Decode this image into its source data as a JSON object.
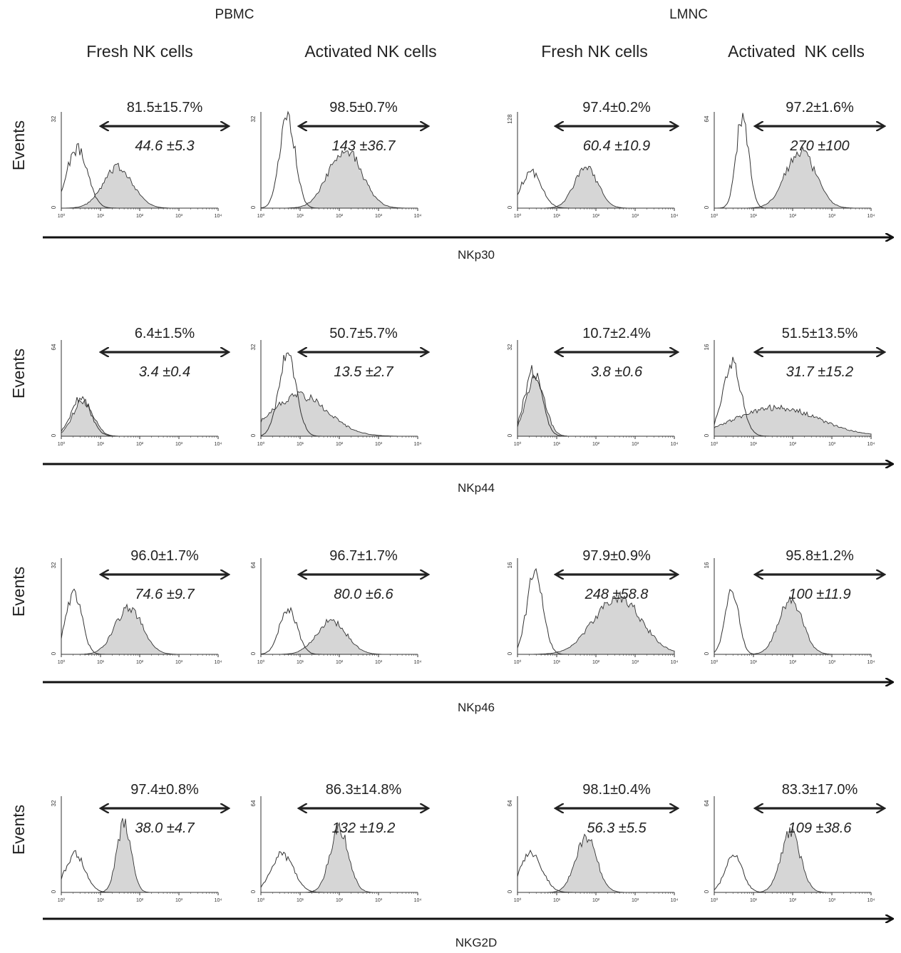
{
  "figure": {
    "group_labels": [
      "PBMC",
      "LMNC"
    ],
    "column_labels": [
      "Fresh NK cells",
      "Activated NK cells",
      "Fresh NK cells",
      "Activated  NK cells"
    ],
    "y_axis_label": "Events",
    "x_tick_labels": [
      "10⁰",
      "10¹",
      "10²",
      "10³",
      "10⁴"
    ],
    "colors": {
      "line": "#333333",
      "fill": "#d6d6d6",
      "axis": "#111111"
    }
  },
  "chart_data": [
    {
      "type": "histogram",
      "marker": "NKp30",
      "group": "PBMC",
      "cells": "Fresh NK cells",
      "percent_label": "81.5±15.7%",
      "mfi_label": "44.6 ±5.3",
      "ymax": 32,
      "xscale": "log",
      "xlim": [
        1,
        10000
      ],
      "control": {
        "peak_log10": 0.4,
        "width": 0.26,
        "height": 0.62
      },
      "stained": {
        "peak_log10": 1.45,
        "width": 0.38,
        "height": 0.42
      }
    },
    {
      "type": "histogram",
      "marker": "NKp30",
      "group": "PBMC",
      "cells": "Activated NK cells",
      "percent_label": "98.5±0.7%",
      "mfi_label": "143 ±36.7",
      "ymax": 32,
      "xscale": "log",
      "xlim": [
        1,
        10000
      ],
      "control": {
        "peak_log10": 0.68,
        "width": 0.2,
        "height": 0.93
      },
      "stained": {
        "peak_log10": 2.15,
        "width": 0.42,
        "height": 0.62
      }
    },
    {
      "type": "histogram",
      "marker": "NKp30",
      "group": "LMNC",
      "cells": "Fresh NK cells",
      "percent_label": "97.4±0.2%",
      "mfi_label": "60.4 ±10.9",
      "ymax": 128,
      "xscale": "log",
      "xlim": [
        1,
        10000
      ],
      "control": {
        "peak_log10": 0.35,
        "width": 0.26,
        "height": 0.38
      },
      "stained": {
        "peak_log10": 1.75,
        "width": 0.3,
        "height": 0.42
      }
    },
    {
      "type": "histogram",
      "marker": "NKp30",
      "group": "LMNC",
      "cells": "Activated  NK cells",
      "percent_label": "97.2±1.6%",
      "mfi_label": "270 ±100",
      "ymax": 64,
      "xscale": "log",
      "xlim": [
        1,
        10000
      ],
      "control": {
        "peak_log10": 0.72,
        "width": 0.16,
        "height": 0.96
      },
      "stained": {
        "peak_log10": 2.2,
        "width": 0.38,
        "height": 0.6
      }
    },
    {
      "type": "histogram",
      "marker": "NKp44",
      "group": "PBMC",
      "cells": "Fresh NK cells",
      "percent_label": "6.4±1.5%",
      "mfi_label": "3.4 ±0.4",
      "ymax": 64,
      "xscale": "log",
      "xlim": [
        1,
        10000
      ],
      "control": {
        "peak_log10": 0.5,
        "width": 0.25,
        "height": 0.4
      },
      "stained": {
        "peak_log10": 0.55,
        "width": 0.26,
        "height": 0.37
      }
    },
    {
      "type": "histogram",
      "marker": "NKp44",
      "group": "PBMC",
      "cells": "Activated NK cells",
      "percent_label": "50.7±5.7%",
      "mfi_label": "13.5 ±2.7",
      "ymax": 32,
      "xscale": "log",
      "xlim": [
        1,
        10000
      ],
      "control": {
        "peak_log10": 0.68,
        "width": 0.22,
        "height": 0.88
      },
      "stained": {
        "peak_log10": 1.0,
        "width": 0.72,
        "height": 0.42
      }
    },
    {
      "type": "histogram",
      "marker": "NKp44",
      "group": "LMNC",
      "cells": "Fresh NK cells",
      "percent_label": "10.7±2.4%",
      "mfi_label": "3.8 ±0.6",
      "ymax": 32,
      "xscale": "log",
      "xlim": [
        1,
        10000
      ],
      "control": {
        "peak_log10": 0.4,
        "width": 0.22,
        "height": 0.68
      },
      "stained": {
        "peak_log10": 0.45,
        "width": 0.24,
        "height": 0.62
      }
    },
    {
      "type": "histogram",
      "marker": "NKp44",
      "group": "LMNC",
      "cells": "Activated  NK cells",
      "percent_label": "51.5±13.5%",
      "mfi_label": "31.7 ±15.2",
      "ymax": 16,
      "xscale": "log",
      "xlim": [
        1,
        10000
      ],
      "control": {
        "peak_log10": 0.45,
        "width": 0.24,
        "height": 0.75
      },
      "stained": {
        "peak_log10": 1.6,
        "width": 1.05,
        "height": 0.3
      }
    },
    {
      "type": "histogram",
      "marker": "NKp46",
      "group": "PBMC",
      "cells": "Fresh NK cells",
      "percent_label": "96.0±1.7%",
      "mfi_label": "74.6 ±9.7",
      "ymax": 32,
      "xscale": "log",
      "xlim": [
        1,
        10000
      ],
      "control": {
        "peak_log10": 0.32,
        "width": 0.2,
        "height": 0.65
      },
      "stained": {
        "peak_log10": 1.72,
        "width": 0.35,
        "height": 0.48
      }
    },
    {
      "type": "histogram",
      "marker": "NKp46",
      "group": "PBMC",
      "cells": "Activated NK cells",
      "percent_label": "96.7±1.7%",
      "mfi_label": "80.0 ±6.6",
      "ymax": 64,
      "xscale": "log",
      "xlim": [
        1,
        10000
      ],
      "control": {
        "peak_log10": 0.7,
        "width": 0.22,
        "height": 0.48
      },
      "stained": {
        "peak_log10": 1.8,
        "width": 0.38,
        "height": 0.35
      }
    },
    {
      "type": "histogram",
      "marker": "NKp46",
      "group": "LMNC",
      "cells": "Fresh NK cells",
      "percent_label": "97.9±0.9%",
      "mfi_label": "248 ±58.8",
      "ymax": 16,
      "xscale": "log",
      "xlim": [
        1,
        10000
      ],
      "control": {
        "peak_log10": 0.45,
        "width": 0.2,
        "height": 0.9
      },
      "stained": {
        "peak_log10": 2.55,
        "width": 0.6,
        "height": 0.6
      }
    },
    {
      "type": "histogram",
      "marker": "NKp46",
      "group": "LMNC",
      "cells": "Activated  NK cells",
      "percent_label": "95.8±1.2%",
      "mfi_label": "100 ±11.9",
      "ymax": 16,
      "xscale": "log",
      "xlim": [
        1,
        10000
      ],
      "control": {
        "peak_log10": 0.45,
        "width": 0.17,
        "height": 0.68
      },
      "stained": {
        "peak_log10": 1.95,
        "width": 0.3,
        "height": 0.58
      }
    },
    {
      "type": "histogram",
      "marker": "NKG2D",
      "group": "PBMC",
      "cells": "Fresh NK cells",
      "percent_label": "97.4±0.8%",
      "mfi_label": "38.0 ±4.7",
      "ymax": 32,
      "xscale": "log",
      "xlim": [
        1,
        10000
      ],
      "control": {
        "peak_log10": 0.35,
        "width": 0.25,
        "height": 0.4
      },
      "stained": {
        "peak_log10": 1.6,
        "width": 0.18,
        "height": 0.72
      }
    },
    {
      "type": "histogram",
      "marker": "NKG2D",
      "group": "PBMC",
      "cells": "Activated NK cells",
      "percent_label": "86.3±14.8%",
      "mfi_label": "132 ±19.2",
      "ymax": 64,
      "xscale": "log",
      "xlim": [
        1,
        10000
      ],
      "control": {
        "peak_log10": 0.55,
        "width": 0.28,
        "height": 0.4
      },
      "stained": {
        "peak_log10": 2.0,
        "width": 0.24,
        "height": 0.65
      }
    },
    {
      "type": "histogram",
      "marker": "NKG2D",
      "group": "LMNC",
      "cells": "Fresh NK cells",
      "percent_label": "98.1±0.4%",
      "mfi_label": "56.3 ±5.5",
      "ymax": 64,
      "xscale": "log",
      "xlim": [
        1,
        10000
      ],
      "control": {
        "peak_log10": 0.35,
        "width": 0.28,
        "height": 0.4
      },
      "stained": {
        "peak_log10": 1.75,
        "width": 0.27,
        "height": 0.58
      }
    },
    {
      "type": "histogram",
      "marker": "NKG2D",
      "group": "LMNC",
      "cells": "Activated  NK cells",
      "percent_label": "83.3±17.0%",
      "mfi_label": "109 ±38.6",
      "ymax": 64,
      "xscale": "log",
      "xlim": [
        1,
        10000
      ],
      "control": {
        "peak_log10": 0.5,
        "width": 0.22,
        "height": 0.38
      },
      "stained": {
        "peak_log10": 1.95,
        "width": 0.25,
        "height": 0.62
      }
    }
  ]
}
